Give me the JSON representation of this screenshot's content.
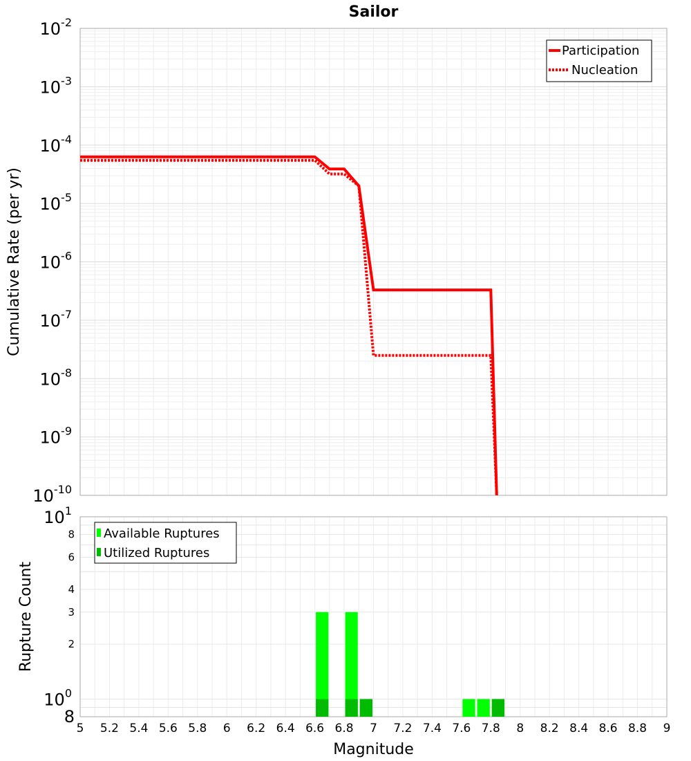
{
  "chart_data": [
    {
      "type": "line",
      "title": "Sailor",
      "xlabel": "Magnitude",
      "ylabel": "Cumulative Rate (per yr)",
      "xlim": [
        5,
        9
      ],
      "ylim": [
        1e-10,
        0.01
      ],
      "yscale": "log",
      "ytick_base": "10",
      "ytick_exponents": [
        "-2",
        "-3",
        "-4",
        "-5",
        "-6",
        "-7",
        "-8",
        "-9",
        "-10"
      ],
      "grid": true,
      "legend_position": "top-right",
      "series": [
        {
          "name": "Participation",
          "style": "solid",
          "color": "#ff0000",
          "x": [
            5.0,
            6.6,
            6.7,
            6.8,
            6.9,
            7.0,
            7.8,
            7.84
          ],
          "y": [
            6.3e-05,
            6.3e-05,
            3.9e-05,
            3.9e-05,
            2e-05,
            3.3e-07,
            3.3e-07,
            1e-10
          ]
        },
        {
          "name": "Nucleation",
          "style": "dotted",
          "color": "#ff0000",
          "x": [
            5.0,
            6.6,
            6.7,
            6.8,
            6.9,
            7.0,
            7.8,
            7.84
          ],
          "y": [
            5.5e-05,
            5.5e-05,
            3.2e-05,
            3.2e-05,
            2e-05,
            2.5e-08,
            2.5e-08,
            1e-10
          ]
        }
      ]
    },
    {
      "type": "bar",
      "xlabel": "Magnitude",
      "ylabel": "Rupture Count",
      "xlim": [
        5,
        9
      ],
      "ylim": [
        0.8,
        10
      ],
      "yscale": "log",
      "grid": true,
      "legend_position": "top-left",
      "x_ticks": [
        "5",
        "5.2",
        "5.4",
        "5.6",
        "5.8",
        "6",
        "6.2",
        "6.4",
        "6.6",
        "6.8",
        "7",
        "7.2",
        "7.4",
        "7.6",
        "7.8",
        "8",
        "8.2",
        "8.4",
        "8.6",
        "8.8",
        "9"
      ],
      "y_tick_top_base": "10",
      "y_tick_top_exp": "1",
      "y_tick_one_base": "10",
      "y_tick_one_exp": "0",
      "y_tick_minor": [
        "8",
        "6",
        "4",
        "3",
        "2"
      ],
      "y_tick_bottom": "8",
      "series": [
        {
          "name": "Available Ruptures",
          "color": "#00ff00",
          "x": [
            6.65,
            6.85,
            6.95,
            7.65,
            7.75,
            7.85
          ],
          "values": [
            3,
            3,
            1,
            1,
            1,
            1
          ]
        },
        {
          "name": "Utilized Ruptures",
          "color": "#00bb00",
          "x": [
            6.65,
            6.85,
            6.95,
            7.85
          ],
          "values": [
            1,
            1,
            1,
            1
          ]
        }
      ]
    }
  ]
}
